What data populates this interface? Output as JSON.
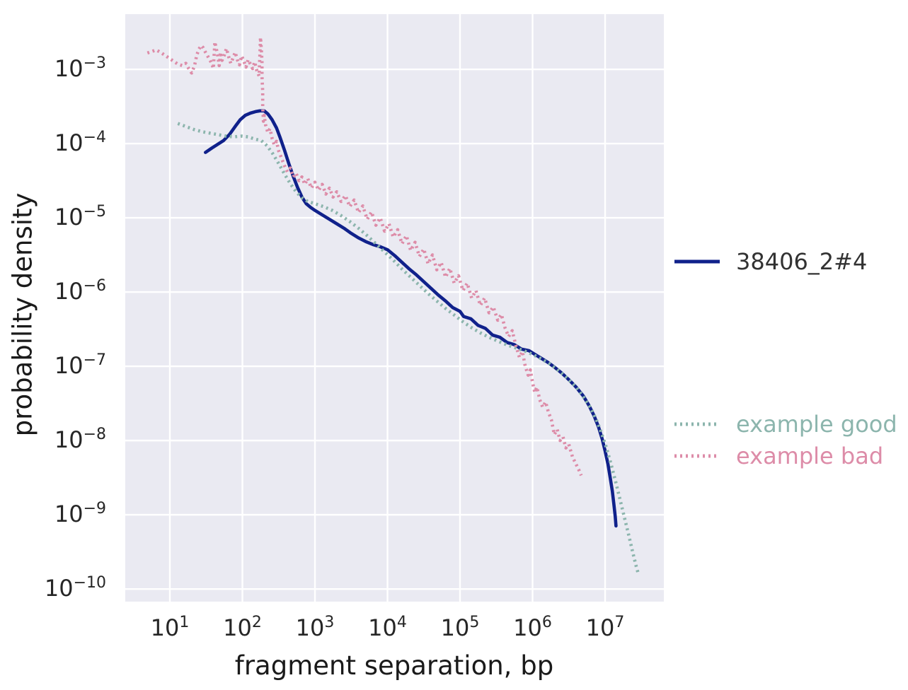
{
  "figure": {
    "background": "#ffffff",
    "plot_background": "#eaeaf2",
    "grid_color": "#ffffff",
    "tick_label_color": "#262626",
    "axis_label_color": "#1a1a1a",
    "legend_text_color": "#323232"
  },
  "chart_data": {
    "type": "line",
    "x_scale": "log",
    "y_scale": "log",
    "title": "",
    "xlabel": "fragment separation, bp",
    "ylabel": "probability density",
    "grid": true,
    "legend_position": "right-outside",
    "x_ticks_exponents": [
      1,
      2,
      3,
      4,
      5,
      6,
      7
    ],
    "y_ticks_exponents": [
      -3,
      -4,
      -5,
      -6,
      -7,
      -8,
      -9,
      -10
    ],
    "xlim_log10": [
      0.385,
      7.81
    ],
    "ylim_log10": [
      -10.17,
      -2.257
    ],
    "series": [
      {
        "name": "38406_2#4",
        "color": "#10218b",
        "label_color": "#323232",
        "style": "solid",
        "points_log10": [
          [
            1.49,
            -4.12
          ],
          [
            1.58,
            -4.06
          ],
          [
            1.66,
            -4.01
          ],
          [
            1.74,
            -3.96
          ],
          [
            1.82,
            -3.88
          ],
          [
            1.9,
            -3.77
          ],
          [
            1.97,
            -3.68
          ],
          [
            2.04,
            -3.62
          ],
          [
            2.11,
            -3.59
          ],
          [
            2.18,
            -3.57
          ],
          [
            2.24,
            -3.56
          ],
          [
            2.3,
            -3.56
          ],
          [
            2.35,
            -3.6
          ],
          [
            2.41,
            -3.68
          ],
          [
            2.47,
            -3.79
          ],
          [
            2.52,
            -3.92
          ],
          [
            2.58,
            -4.09
          ],
          [
            2.64,
            -4.27
          ],
          [
            2.7,
            -4.44
          ],
          [
            2.76,
            -4.59
          ],
          [
            2.82,
            -4.72
          ],
          [
            2.88,
            -4.81
          ],
          [
            2.94,
            -4.86
          ],
          [
            3.0,
            -4.9
          ],
          [
            3.1,
            -4.96
          ],
          [
            3.2,
            -5.02
          ],
          [
            3.3,
            -5.08
          ],
          [
            3.4,
            -5.14
          ],
          [
            3.5,
            -5.21
          ],
          [
            3.6,
            -5.27
          ],
          [
            3.7,
            -5.32
          ],
          [
            3.8,
            -5.36
          ],
          [
            3.9,
            -5.39
          ],
          [
            4.0,
            -5.43
          ],
          [
            4.1,
            -5.51
          ],
          [
            4.2,
            -5.6
          ],
          [
            4.3,
            -5.69
          ],
          [
            4.4,
            -5.77
          ],
          [
            4.5,
            -5.86
          ],
          [
            4.6,
            -5.95
          ],
          [
            4.7,
            -6.04
          ],
          [
            4.8,
            -6.12
          ],
          [
            4.9,
            -6.21
          ],
          [
            5.0,
            -6.26
          ],
          [
            5.05,
            -6.33
          ],
          [
            5.15,
            -6.36
          ],
          [
            5.25,
            -6.45
          ],
          [
            5.35,
            -6.49
          ],
          [
            5.45,
            -6.58
          ],
          [
            5.55,
            -6.61
          ],
          [
            5.65,
            -6.68
          ],
          [
            5.75,
            -6.71
          ],
          [
            5.85,
            -6.77
          ],
          [
            5.95,
            -6.79
          ],
          [
            6.0,
            -6.82
          ],
          [
            6.1,
            -6.88
          ],
          [
            6.2,
            -6.94
          ],
          [
            6.3,
            -7.01
          ],
          [
            6.4,
            -7.09
          ],
          [
            6.5,
            -7.18
          ],
          [
            6.6,
            -7.28
          ],
          [
            6.7,
            -7.4
          ],
          [
            6.78,
            -7.53
          ],
          [
            6.85,
            -7.67
          ],
          [
            6.91,
            -7.82
          ],
          [
            6.96,
            -7.98
          ],
          [
            7.0,
            -8.14
          ],
          [
            7.04,
            -8.32
          ],
          [
            7.07,
            -8.5
          ],
          [
            7.1,
            -8.68
          ],
          [
            7.12,
            -8.85
          ],
          [
            7.14,
            -9.02
          ],
          [
            7.15,
            -9.15
          ]
        ]
      },
      {
        "name": "example good",
        "color": "#8cb5ad",
        "label_color": "#8cb5ad",
        "style": "dotted",
        "points_log10": [
          [
            1.11,
            -3.73
          ],
          [
            1.22,
            -3.77
          ],
          [
            1.33,
            -3.81
          ],
          [
            1.44,
            -3.84
          ],
          [
            1.55,
            -3.86
          ],
          [
            1.66,
            -3.88
          ],
          [
            1.77,
            -3.9
          ],
          [
            1.88,
            -3.91
          ],
          [
            1.99,
            -3.9
          ],
          [
            2.08,
            -3.91
          ],
          [
            2.17,
            -3.94
          ],
          [
            2.26,
            -3.96
          ],
          [
            2.34,
            -4.03
          ],
          [
            2.42,
            -4.14
          ],
          [
            2.5,
            -4.27
          ],
          [
            2.58,
            -4.41
          ],
          [
            2.66,
            -4.54
          ],
          [
            2.74,
            -4.65
          ],
          [
            2.82,
            -4.73
          ],
          [
            2.9,
            -4.78
          ],
          [
            3.0,
            -4.81
          ],
          [
            3.12,
            -4.85
          ],
          [
            3.24,
            -4.9
          ],
          [
            3.36,
            -4.97
          ],
          [
            3.48,
            -5.05
          ],
          [
            3.6,
            -5.14
          ],
          [
            3.72,
            -5.24
          ],
          [
            3.84,
            -5.35
          ],
          [
            3.96,
            -5.46
          ],
          [
            4.08,
            -5.57
          ],
          [
            4.2,
            -5.69
          ],
          [
            4.32,
            -5.8
          ],
          [
            4.44,
            -5.91
          ],
          [
            4.56,
            -6.02
          ],
          [
            4.68,
            -6.12
          ],
          [
            4.8,
            -6.22
          ],
          [
            4.92,
            -6.31
          ],
          [
            5.04,
            -6.4
          ],
          [
            5.16,
            -6.48
          ],
          [
            5.28,
            -6.55
          ],
          [
            5.4,
            -6.61
          ],
          [
            5.52,
            -6.66
          ],
          [
            5.64,
            -6.71
          ],
          [
            5.76,
            -6.75
          ],
          [
            5.88,
            -6.79
          ],
          [
            6.0,
            -6.84
          ],
          [
            6.12,
            -6.9
          ],
          [
            6.24,
            -6.97
          ],
          [
            6.36,
            -7.06
          ],
          [
            6.48,
            -7.16
          ],
          [
            6.6,
            -7.28
          ],
          [
            6.7,
            -7.41
          ],
          [
            6.8,
            -7.56
          ],
          [
            6.88,
            -7.72
          ],
          [
            6.95,
            -7.9
          ],
          [
            7.02,
            -8.1
          ],
          [
            7.08,
            -8.31
          ],
          [
            7.14,
            -8.53
          ],
          [
            7.2,
            -8.77
          ],
          [
            7.26,
            -9.01
          ],
          [
            7.32,
            -9.25
          ],
          [
            7.38,
            -9.5
          ],
          [
            7.43,
            -9.7
          ],
          [
            7.46,
            -9.8
          ]
        ]
      },
      {
        "name": "example bad",
        "color": "#dd8ca8",
        "label_color": "#dd8ca8",
        "style": "dotted",
        "points_log10": [
          [
            0.69,
            -2.78
          ],
          [
            0.75,
            -2.76
          ],
          [
            0.81,
            -2.74
          ],
          [
            0.87,
            -2.77
          ],
          [
            0.93,
            -2.81
          ],
          [
            0.99,
            -2.85
          ],
          [
            1.05,
            -2.89
          ],
          [
            1.11,
            -2.93
          ],
          [
            1.17,
            -2.95
          ],
          [
            1.22,
            -2.92
          ],
          [
            1.26,
            -2.99
          ],
          [
            1.3,
            -3.05
          ],
          [
            1.34,
            -2.95
          ],
          [
            1.37,
            -2.81
          ],
          [
            1.4,
            -2.73
          ],
          [
            1.43,
            -2.68
          ],
          [
            1.46,
            -2.71
          ],
          [
            1.49,
            -2.77
          ],
          [
            1.52,
            -2.82
          ],
          [
            1.55,
            -2.87
          ],
          [
            1.58,
            -2.93
          ],
          [
            1.6,
            -2.99
          ],
          [
            1.62,
            -2.63
          ],
          [
            1.64,
            -2.72
          ],
          [
            1.66,
            -2.82
          ],
          [
            1.68,
            -2.95
          ],
          [
            1.7,
            -2.77
          ],
          [
            1.72,
            -2.88
          ],
          [
            1.75,
            -2.81
          ],
          [
            1.78,
            -2.72
          ],
          [
            1.81,
            -2.83
          ],
          [
            1.84,
            -2.92
          ],
          [
            1.87,
            -2.85
          ],
          [
            1.9,
            -2.77
          ],
          [
            1.93,
            -2.87
          ],
          [
            1.96,
            -2.94
          ],
          [
            1.99,
            -2.82
          ],
          [
            2.02,
            -2.89
          ],
          [
            2.05,
            -2.97
          ],
          [
            2.08,
            -2.87
          ],
          [
            2.11,
            -2.93
          ],
          [
            2.14,
            -2.99
          ],
          [
            2.17,
            -2.9
          ],
          [
            2.2,
            -3.02
          ],
          [
            2.23,
            -3.09
          ],
          [
            2.25,
            -2.57
          ],
          [
            2.26,
            -2.72
          ],
          [
            2.27,
            -2.9
          ],
          [
            2.27,
            -3.1
          ],
          [
            2.28,
            -3.3
          ],
          [
            2.28,
            -3.5
          ],
          [
            2.29,
            -3.7
          ],
          [
            2.3,
            -3.62
          ],
          [
            2.32,
            -3.75
          ],
          [
            2.35,
            -3.85
          ],
          [
            2.38,
            -3.8
          ],
          [
            2.41,
            -3.93
          ],
          [
            2.44,
            -4.02
          ],
          [
            2.47,
            -3.97
          ],
          [
            2.5,
            -4.1
          ],
          [
            2.54,
            -4.2
          ],
          [
            2.58,
            -4.3
          ],
          [
            2.62,
            -4.38
          ],
          [
            2.66,
            -4.33
          ],
          [
            2.7,
            -4.45
          ],
          [
            2.74,
            -4.4
          ],
          [
            2.78,
            -4.5
          ],
          [
            2.82,
            -4.45
          ],
          [
            2.86,
            -4.55
          ],
          [
            2.9,
            -4.47
          ],
          [
            2.95,
            -4.6
          ],
          [
            3.0,
            -4.52
          ],
          [
            3.05,
            -4.63
          ],
          [
            3.1,
            -4.55
          ],
          [
            3.15,
            -4.68
          ],
          [
            3.2,
            -4.6
          ],
          [
            3.25,
            -4.72
          ],
          [
            3.3,
            -4.65
          ],
          [
            3.36,
            -4.78
          ],
          [
            3.42,
            -4.7
          ],
          [
            3.48,
            -4.85
          ],
          [
            3.54,
            -4.76
          ],
          [
            3.6,
            -4.93
          ],
          [
            3.66,
            -4.84
          ],
          [
            3.72,
            -5.02
          ],
          [
            3.78,
            -4.92
          ],
          [
            3.84,
            -5.1
          ],
          [
            3.9,
            -5.0
          ],
          [
            3.96,
            -5.18
          ],
          [
            4.02,
            -5.08
          ],
          [
            4.08,
            -5.26
          ],
          [
            4.14,
            -5.16
          ],
          [
            4.2,
            -5.35
          ],
          [
            4.26,
            -5.24
          ],
          [
            4.32,
            -5.44
          ],
          [
            4.38,
            -5.33
          ],
          [
            4.44,
            -5.52
          ],
          [
            4.5,
            -5.42
          ],
          [
            4.56,
            -5.62
          ],
          [
            4.62,
            -5.5
          ],
          [
            4.68,
            -5.7
          ],
          [
            4.74,
            -5.6
          ],
          [
            4.8,
            -5.8
          ],
          [
            4.86,
            -5.68
          ],
          [
            4.92,
            -5.88
          ],
          [
            4.98,
            -5.78
          ],
          [
            5.04,
            -5.98
          ],
          [
            5.1,
            -5.88
          ],
          [
            5.16,
            -6.08
          ],
          [
            5.22,
            -5.98
          ],
          [
            5.28,
            -6.18
          ],
          [
            5.34,
            -6.08
          ],
          [
            5.4,
            -6.28
          ],
          [
            5.46,
            -6.2
          ],
          [
            5.52,
            -6.38
          ],
          [
            5.57,
            -6.3
          ],
          [
            5.62,
            -6.48
          ],
          [
            5.67,
            -6.6
          ],
          [
            5.72,
            -6.52
          ],
          [
            5.77,
            -6.72
          ],
          [
            5.82,
            -6.88
          ],
          [
            5.86,
            -6.8
          ],
          [
            5.9,
            -7.0
          ],
          [
            5.94,
            -7.12
          ],
          [
            5.97,
            -7.05
          ],
          [
            6.0,
            -7.22
          ],
          [
            6.03,
            -7.35
          ],
          [
            6.06,
            -7.28
          ],
          [
            6.1,
            -7.45
          ],
          [
            6.14,
            -7.55
          ],
          [
            6.18,
            -7.48
          ],
          [
            6.22,
            -7.62
          ],
          [
            6.26,
            -7.72
          ],
          [
            6.3,
            -7.92
          ],
          [
            6.34,
            -7.85
          ],
          [
            6.38,
            -8.0
          ],
          [
            6.42,
            -7.95
          ],
          [
            6.46,
            -8.1
          ],
          [
            6.5,
            -8.05
          ],
          [
            6.55,
            -8.22
          ],
          [
            6.6,
            -8.32
          ],
          [
            6.64,
            -8.4
          ],
          [
            6.67,
            -8.47
          ]
        ]
      }
    ]
  },
  "legend": {
    "entry_1_label": "38406_2#4",
    "entry_2_label": "example good",
    "entry_3_label": "example bad"
  }
}
